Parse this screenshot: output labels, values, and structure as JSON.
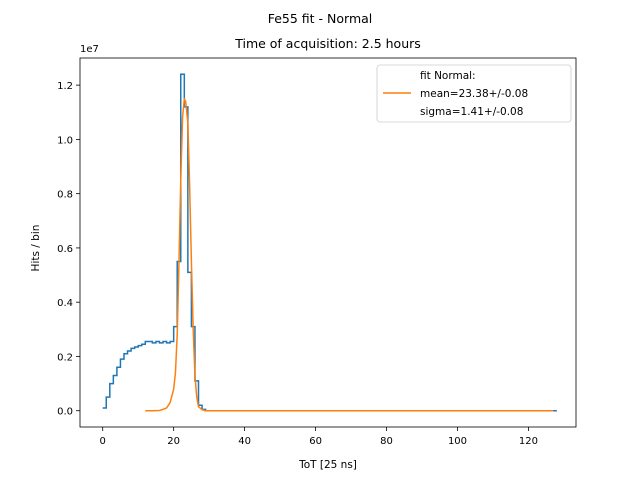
{
  "chart_data": {
    "type": "line",
    "title": "Fe55 fit - Normal",
    "subtitle": "Time of acquisition: 2.5 hours",
    "xlabel": "ToT [25 ns]",
    "ylabel": "Hits / bin",
    "y_offset_text": "1e7",
    "xlim": [
      -6.4,
      133.4
    ],
    "ylim": [
      -0.06,
      1.3
    ],
    "x_ticks": [
      0,
      20,
      40,
      60,
      80,
      100,
      120
    ],
    "y_ticks": [
      0.0,
      0.2,
      0.4,
      0.6,
      0.8,
      1.0,
      1.2
    ],
    "x_tick_labels": [
      "0",
      "20",
      "40",
      "60",
      "80",
      "100",
      "120"
    ],
    "y_tick_labels": [
      "0.0",
      "0.2",
      "0.4",
      "0.6",
      "0.8",
      "1.0",
      "1.2"
    ],
    "grid": false,
    "legend_position": "top-right",
    "legend": {
      "title_line": "fit Normal:",
      "line1": "mean=23.38+/-0.08",
      "line2": "sigma=1.41+/-0.08"
    },
    "series": [
      {
        "kind": "step-histogram",
        "color": "#1f77b4",
        "x": [
          0,
          1,
          2,
          3,
          4,
          5,
          6,
          7,
          8,
          9,
          10,
          11,
          12,
          13,
          14,
          15,
          16,
          17,
          18,
          19,
          20,
          21,
          22,
          23,
          24,
          25,
          26,
          27,
          28,
          29,
          30,
          31,
          32,
          33,
          34,
          35,
          36,
          37,
          38,
          39,
          40,
          41,
          42,
          43,
          44,
          45,
          46,
          47,
          48,
          49,
          50,
          51,
          52,
          53,
          54,
          55,
          56,
          57,
          58,
          59,
          60,
          61,
          62,
          63,
          64,
          65,
          66,
          67,
          68,
          69,
          70,
          71,
          72,
          73,
          74,
          75,
          76,
          77,
          78,
          79,
          80,
          81,
          82,
          83,
          84,
          85,
          86,
          87,
          88,
          89,
          90,
          91,
          92,
          93,
          94,
          95,
          96,
          97,
          98,
          99,
          100,
          101,
          102,
          103,
          104,
          105,
          106,
          107,
          108,
          109,
          110,
          111,
          112,
          113,
          114,
          115,
          116,
          117,
          118,
          119,
          120,
          121,
          122,
          123,
          124,
          125,
          126,
          127
        ],
        "values": [
          0.01,
          0.05,
          0.1,
          0.13,
          0.16,
          0.19,
          0.21,
          0.22,
          0.23,
          0.235,
          0.24,
          0.245,
          0.255,
          0.255,
          0.25,
          0.255,
          0.25,
          0.255,
          0.25,
          0.255,
          0.31,
          0.55,
          1.24,
          1.12,
          0.51,
          0.31,
          0.11,
          0.02,
          0.005,
          0,
          0,
          0,
          0,
          0,
          0,
          0,
          0,
          0,
          0,
          0,
          0,
          0,
          0,
          0,
          0,
          0,
          0,
          0,
          0,
          0,
          0,
          0,
          0,
          0,
          0,
          0,
          0,
          0,
          0,
          0,
          0,
          0,
          0,
          0,
          0,
          0,
          0,
          0,
          0,
          0,
          0,
          0,
          0,
          0,
          0,
          0,
          0,
          0,
          0,
          0,
          0,
          0,
          0,
          0,
          0,
          0,
          0,
          0,
          0,
          0,
          0,
          0,
          0,
          0,
          0,
          0,
          0,
          0,
          0,
          0,
          0,
          0,
          0,
          0,
          0,
          0,
          0,
          0,
          0,
          0,
          0,
          0,
          0,
          0,
          0,
          0,
          0,
          0,
          0,
          0,
          0,
          0,
          0,
          0,
          0,
          0,
          0,
          0
        ]
      },
      {
        "kind": "fit-line",
        "color": "#ff7f0e",
        "x": [
          12,
          14,
          16,
          17,
          18,
          19,
          20,
          20.5,
          21,
          21.5,
          22,
          22.5,
          23,
          23.38,
          24,
          24.5,
          25,
          25.5,
          26,
          26.5,
          27,
          28,
          29,
          30,
          35,
          50,
          70,
          90,
          110,
          127
        ],
        "values": [
          0,
          0,
          0.001,
          0.005,
          0.01,
          0.03,
          0.08,
          0.14,
          0.28,
          0.55,
          0.85,
          1.08,
          1.15,
          1.14,
          1.06,
          0.83,
          0.55,
          0.3,
          0.13,
          0.05,
          0.015,
          0.004,
          0,
          0,
          0,
          0,
          0,
          0,
          0,
          0
        ]
      }
    ]
  }
}
